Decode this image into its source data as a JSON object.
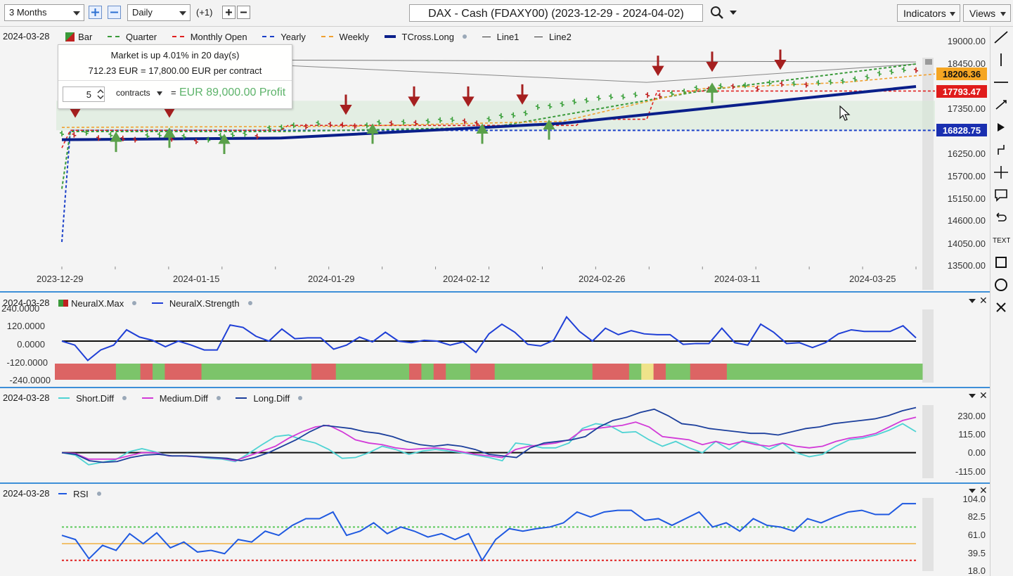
{
  "toolbar": {
    "range": "3 Months",
    "interval": "Daily",
    "offset": "(+1)",
    "title": "DAX - Cash (FDAXY00) (2023-12-29 - 2024-04-02)",
    "indicators_label": "Indicators",
    "views_label": "Views"
  },
  "main_pane": {
    "date": "2024-03-28",
    "legend": {
      "bar": "Bar",
      "quarter": "Quarter",
      "monthly_open": "Monthly Open",
      "yearly": "Yearly",
      "weekly": "Weekly",
      "tcross": "TCross.Long",
      "line1": "Line1",
      "line2": "Line2"
    },
    "info": {
      "line1": "Market is up 4.01% in 20 day(s)",
      "line2": "712.23 EUR = 17,800.00 EUR per contract",
      "quantity": "5",
      "unit": "contracts",
      "equals": "=",
      "profit": "EUR 89,000.00 Profit"
    },
    "y_ticks": [
      "19000.00",
      "18450.00",
      "17350.00",
      "16250.00",
      "15700.00",
      "15150.00",
      "14600.00",
      "14050.00",
      "13500.00"
    ],
    "price_labels": {
      "weekly": "18206.36",
      "monthly": "17793.47",
      "yearly": "16828.75"
    },
    "x_ticks": [
      "2023-12-29",
      "2024-01-15",
      "2024-01-29",
      "2024-02-12",
      "2024-02-26",
      "2024-03-11",
      "2024-03-25"
    ]
  },
  "neural_pane": {
    "date": "2024-03-28",
    "legend": {
      "max": "NeuralX.Max",
      "strength": "NeuralX.Strength"
    },
    "y_ticks": [
      "240.0000",
      "120.0000",
      "0.0000",
      "-120.0000",
      "-240.0000"
    ]
  },
  "diff_pane": {
    "date": "2024-03-28",
    "legend": {
      "short": "Short.Diff",
      "medium": "Medium.Diff",
      "long": "Long.Diff"
    },
    "y_ticks": [
      "230.00",
      "115.00",
      "0.00",
      "-115.00"
    ]
  },
  "rsi_pane": {
    "date": "2024-03-28",
    "legend": {
      "rsi": "RSI"
    },
    "y_ticks": [
      "104.0",
      "82.5",
      "61.0",
      "39.5",
      "18.0"
    ]
  },
  "colors": {
    "accent": "#2b6fd1",
    "up": "#5aa04a",
    "down": "#a51f1f",
    "weekly": "#f0a030",
    "monthly": "#e02020",
    "yearly": "#1a3fc8",
    "tcross": "#0a1f8a",
    "short": "#4fd3d3",
    "medium": "#d23ad8",
    "long": "#1c3f9c",
    "rsi": "#1f59e0"
  },
  "series": {
    "close": [
      16750,
      16720,
      16770,
      16640,
      16720,
      16630,
      16600,
      16700,
      16720,
      16620,
      16680,
      16560,
      16600,
      16700,
      16720,
      16740,
      16680,
      16880,
      16900,
      16950,
      16920,
      17000,
      16970,
      16960,
      16930,
      16950,
      17020,
      17000,
      17030,
      17010,
      17050,
      17080,
      17090,
      17050,
      17000,
      17100,
      17180,
      17200,
      17250,
      17400,
      17420,
      17470,
      17530,
      17560,
      17620,
      17650,
      17650,
      17700,
      17690,
      17670,
      17730,
      17780,
      17860,
      17830,
      17910,
      17900,
      17930,
      17850,
      17990,
      17960,
      17970,
      17940,
      17990,
      18010,
      18030,
      18080,
      18130,
      18220,
      18260,
      18310,
      18300
    ],
    "strength": [
      0,
      -25,
      -120,
      -55,
      -25,
      70,
      25,
      5,
      -35,
      0,
      -25,
      -55,
      -55,
      100,
      85,
      30,
      0,
      75,
      15,
      20,
      20,
      -50,
      -25,
      25,
      -5,
      55,
      0,
      -10,
      5,
      0,
      -25,
      -5,
      -70,
      45,
      105,
      55,
      -20,
      -30,
      5,
      150,
      60,
      0,
      80,
      40,
      65,
      45,
      40,
      40,
      -20,
      -15,
      -15,
      80,
      -10,
      -25,
      105,
      55,
      -15,
      -10,
      -40,
      -10,
      45,
      70,
      60,
      60,
      60,
      95,
      20
    ],
    "nmax_colors": [
      "r",
      "r",
      "r",
      "r",
      "r",
      "g",
      "g",
      "r",
      "g",
      "r",
      "r",
      "r",
      "g",
      "g",
      "g",
      "g",
      "g",
      "g",
      "g",
      "g",
      "g",
      "r",
      "r",
      "g",
      "g",
      "g",
      "g",
      "g",
      "g",
      "r",
      "g",
      "r",
      "g",
      "g",
      "r",
      "r",
      "g",
      "g",
      "g",
      "g",
      "g",
      "g",
      "g",
      "g",
      "r",
      "r",
      "r",
      "g",
      "y",
      "r",
      "g",
      "g",
      "r",
      "r",
      "r",
      "g",
      "g",
      "g",
      "g",
      "g",
      "g",
      "g",
      "g",
      "g",
      "g",
      "g",
      "g",
      "g",
      "g",
      "g",
      "g"
    ],
    "short": [
      0,
      -15,
      -75,
      -60,
      -45,
      5,
      25,
      5,
      -20,
      -20,
      -25,
      -35,
      -40,
      -55,
      -5,
      50,
      100,
      110,
      80,
      60,
      20,
      -35,
      -30,
      0,
      40,
      20,
      -10,
      10,
      20,
      10,
      0,
      -15,
      -30,
      -50,
      60,
      50,
      30,
      30,
      60,
      150,
      180,
      170,
      125,
      130,
      80,
      40,
      70,
      30,
      0,
      70,
      20,
      75,
      60,
      20,
      60,
      0,
      -25,
      -10,
      40,
      80,
      90,
      110,
      140,
      180,
      130
    ],
    "medium": [
      0,
      -5,
      -40,
      -40,
      -40,
      -20,
      0,
      0,
      -20,
      -20,
      -25,
      -30,
      -35,
      -50,
      -20,
      10,
      40,
      90,
      130,
      160,
      170,
      130,
      80,
      60,
      50,
      30,
      20,
      25,
      30,
      20,
      5,
      -10,
      -20,
      -30,
      20,
      40,
      50,
      60,
      80,
      140,
      150,
      160,
      170,
      190,
      160,
      100,
      90,
      80,
      50,
      70,
      50,
      70,
      50,
      40,
      60,
      40,
      30,
      40,
      70,
      90,
      100,
      120,
      160,
      200,
      220
    ],
    "long": [
      0,
      -10,
      -50,
      -60,
      -55,
      -30,
      -15,
      -10,
      -20,
      -20,
      -25,
      -30,
      -35,
      -50,
      -30,
      0,
      40,
      80,
      130,
      170,
      160,
      150,
      130,
      120,
      100,
      70,
      50,
      40,
      50,
      40,
      20,
      -10,
      -20,
      -30,
      30,
      60,
      70,
      80,
      100,
      160,
      200,
      220,
      250,
      270,
      230,
      180,
      170,
      150,
      140,
      130,
      120,
      120,
      110,
      130,
      150,
      160,
      180,
      190,
      200,
      210,
      230,
      260,
      280
    ],
    "rsi": [
      60,
      55,
      32,
      48,
      42,
      62,
      50,
      63,
      45,
      52,
      40,
      42,
      38,
      55,
      52,
      65,
      60,
      72,
      80,
      80,
      88,
      60,
      65,
      75,
      62,
      70,
      65,
      58,
      62,
      55,
      62,
      30,
      55,
      68,
      65,
      68,
      70,
      75,
      88,
      82,
      88,
      90,
      90,
      78,
      80,
      72,
      80,
      88,
      70,
      75,
      65,
      80,
      72,
      70,
      65,
      80,
      75,
      82,
      88,
      90,
      85,
      85,
      98,
      98
    ]
  }
}
